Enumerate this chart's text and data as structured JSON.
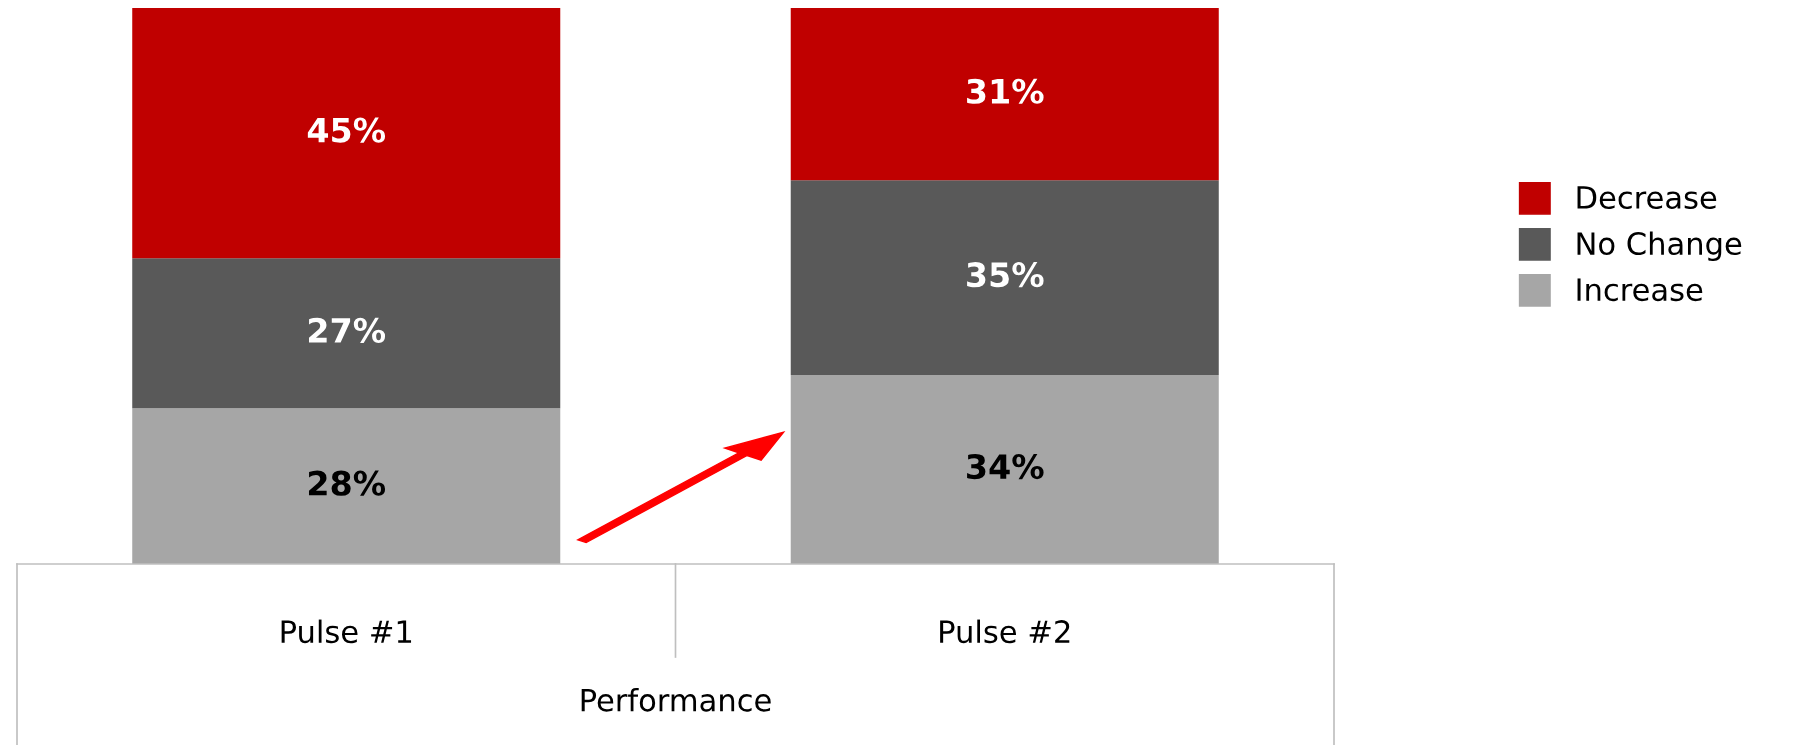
{
  "chart_data": {
    "type": "bar",
    "stacked": true,
    "categories": [
      "Pulse #1",
      "Pulse #2"
    ],
    "xlabel": "Performance",
    "series": [
      {
        "name": "Increase",
        "color": "#a6a6a6",
        "values": [
          28,
          34
        ],
        "value_labels": [
          "28%",
          "34%"
        ]
      },
      {
        "name": "No Change",
        "color": "#595959",
        "values": [
          27,
          35
        ],
        "value_labels": [
          "27%",
          "35%"
        ]
      },
      {
        "name": "Decrease",
        "color": "#c00000",
        "values": [
          45,
          31
        ],
        "value_labels": [
          "45%",
          "31%"
        ]
      }
    ],
    "legend": "right",
    "grid": false
  }
}
